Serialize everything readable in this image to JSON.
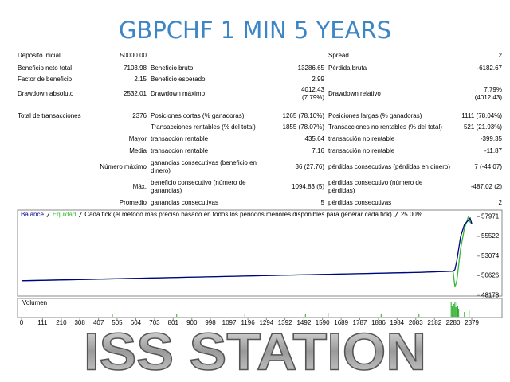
{
  "header": {
    "title": "GBPCHF 1 MIN 5 YEARS"
  },
  "table": {
    "rows": [
      [
        "Depósito inicial",
        "50000.00",
        null,
        null,
        "Spread",
        "2"
      ],
      [
        "Beneficio neto total",
        "7103.98",
        "Beneficio bruto",
        "13286.65",
        "Pérdida bruta",
        "-6182.67"
      ],
      [
        "Factor de beneficio",
        "2.15",
        "Beneficio esperado",
        "2.99",
        null,
        null
      ],
      [
        "Drawdown absoluto",
        "2532.01",
        "Drawdown máximo",
        [
          "4012.43",
          "(7.79%)"
        ],
        "Drawdown relativo",
        [
          "7.79%",
          "(4012.43)"
        ]
      ],
      [
        "Total de transacciones",
        "2376",
        "Posiciones cortas (% ganadoras)",
        "1265 (78.10%)",
        "Posiciones largas (% ganadoras)",
        "1111 (78.04%)"
      ],
      [
        null,
        null,
        "Transacciones rentables (% del total)",
        "1855 (78.07%)",
        "Transacciones no rentables (% del total)",
        "521 (21.93%)"
      ],
      [
        "Mayor",
        null,
        "transacción rentable",
        "435.64",
        "transacción no rentable",
        "-399.35"
      ],
      [
        "Media",
        null,
        "transacción rentable",
        "7.16",
        "transacción no rentable",
        "-11.87"
      ],
      [
        "Número máximo",
        null,
        [
          "ganancias consecutivas (beneficio en",
          "dinero)"
        ],
        "36 (27.76)",
        "pérdidas consecutivas (pérdidas en dinero)",
        "7 (-44.07)"
      ],
      [
        "Máx.",
        null,
        [
          "beneficio consecutivo (número de",
          "ganancias)"
        ],
        "1094.83 (5)",
        [
          "pérdidas consecutivo (número de",
          "pérdidas)"
        ],
        "-487.02 (2)"
      ],
      [
        "Promedio",
        null,
        "ganancias consecutivas",
        "5",
        "pérdidas consecutivas",
        "2"
      ]
    ]
  },
  "chart_data": {
    "type": "line",
    "note": "Cada tick (el método más preciso basado en todos los periodos menores disponibles para generar cada tick)",
    "quality": "25.00%",
    "x": [
      0,
      300,
      600,
      900,
      1200,
      1500,
      1800,
      2100,
      2280,
      2290,
      2300,
      2320,
      2340,
      2360,
      2370,
      2379
    ],
    "series": [
      {
        "name": "Balance",
        "color": "#00008b",
        "values": [
          50000,
          50150,
          50300,
          50450,
          50600,
          50750,
          50900,
          51050,
          51200,
          51400,
          52500,
          55500,
          57000,
          57500,
          57800,
          57104
        ]
      },
      {
        "name": "Equidad",
        "color": "#33bb33",
        "values": [
          50000,
          50150,
          50300,
          50450,
          50600,
          50750,
          50900,
          51050,
          51200,
          49200,
          50000,
          54000,
          56500,
          57900,
          57300,
          57104
        ]
      }
    ],
    "xlim": [
      -21,
      2404
    ],
    "ylim": [
      48100,
      58800
    ],
    "xticks": [
      0,
      111,
      210,
      308,
      407,
      505,
      604,
      703,
      801,
      900,
      998,
      1097,
      1196,
      1294,
      1392,
      1492,
      1590,
      1689,
      1787,
      1886,
      1984,
      2083,
      2182,
      2280,
      2379
    ],
    "yticks": [
      57971,
      55522,
      53074,
      50626,
      48178
    ],
    "volume": {
      "label": "Volumen",
      "color": "#22aa22",
      "x": [
        480,
        820,
        1180,
        1500,
        1620,
        1900,
        2100,
        2270,
        2275,
        2280,
        2285,
        2290,
        2295,
        2300,
        2305,
        2310,
        2340,
        2365
      ],
      "values": [
        0.2,
        0.15,
        0.2,
        0.15,
        0.25,
        0.2,
        0.15,
        0.9,
        0.7,
        1,
        0.8,
        0.95,
        0.6,
        0.9,
        0.7,
        0.5,
        0.3,
        0.4
      ],
      "ylim": [
        0,
        1
      ]
    }
  },
  "footer": {
    "text": "ISS STATION"
  }
}
